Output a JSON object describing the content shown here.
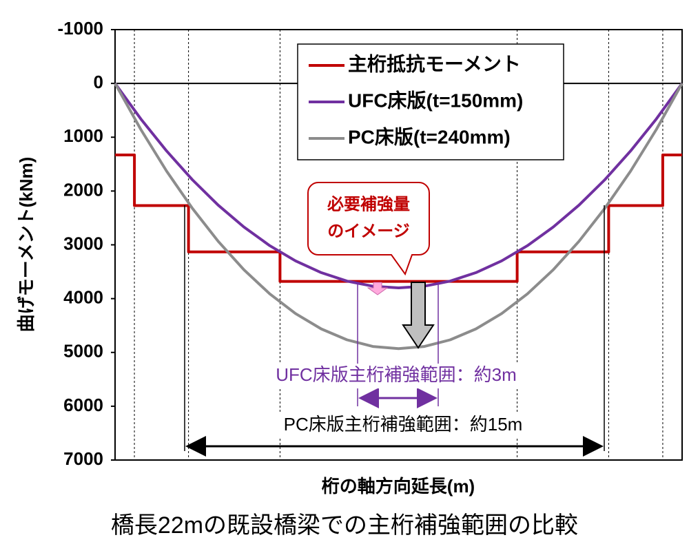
{
  "chart_data": {
    "type": "line",
    "y_label": "曲げモーメント(kNm)",
    "x_label": "桁の軸方向延長(m)",
    "caption": "橋長22mの既設橋梁での主桁補強範囲の比較",
    "xlim": [
      0,
      22
    ],
    "xticks": [
      0.75,
      2.85,
      6.4,
      15.6,
      19.15,
      21.25
    ],
    "ylim": [
      -1000,
      7000
    ],
    "yticks": [
      -1000,
      0,
      1000,
      2000,
      3000,
      4000,
      5000,
      6000,
      7000
    ],
    "y_inverted": true,
    "grid": true,
    "legend": "top",
    "series": [
      {
        "name": "主桁抵抗モーメント",
        "color": "#c00000",
        "x": [
          0,
          0.75,
          0.75,
          2.85,
          2.85,
          6.4,
          6.4,
          15.6,
          15.6,
          19.15,
          19.15,
          21.25,
          21.25,
          22
        ],
        "values": [
          1330,
          1330,
          2270,
          2270,
          3130,
          3130,
          3680,
          3680,
          3130,
          3130,
          2270,
          2270,
          1330,
          1330
        ]
      },
      {
        "name": "UFC床版(t=150mm)",
        "color": "#7030a0",
        "x": [
          0,
          1,
          2,
          3,
          4,
          5,
          6,
          7,
          8,
          9,
          10,
          11,
          12,
          13,
          14,
          15,
          16,
          17,
          18,
          19,
          20,
          21,
          22
        ],
        "values": [
          0,
          660,
          1256,
          1790,
          2261,
          2669,
          3015,
          3298,
          3517,
          3674,
          3769,
          3800,
          3769,
          3674,
          3517,
          3298,
          3015,
          2669,
          2261,
          1790,
          1256,
          660,
          0
        ]
      },
      {
        "name": "PC床版(t=240mm)",
        "color": "#8c8c8c",
        "x": [
          0,
          1,
          2,
          3,
          4,
          5,
          6,
          7,
          8,
          9,
          10,
          11,
          12,
          13,
          14,
          15,
          16,
          17,
          18,
          19,
          20,
          21,
          22
        ],
        "values": [
          0,
          856,
          1630,
          2322,
          2934,
          3463,
          3911,
          4278,
          4563,
          4767,
          4889,
          4930,
          4889,
          4767,
          4563,
          4278,
          3911,
          3463,
          2934,
          2322,
          1630,
          856,
          0
        ]
      }
    ],
    "annotations": [
      "必要補強量",
      "のイメージ",
      "UFC床版主桁補強範囲：約3m",
      "PC床版主桁補強範囲：約15m"
    ]
  }
}
